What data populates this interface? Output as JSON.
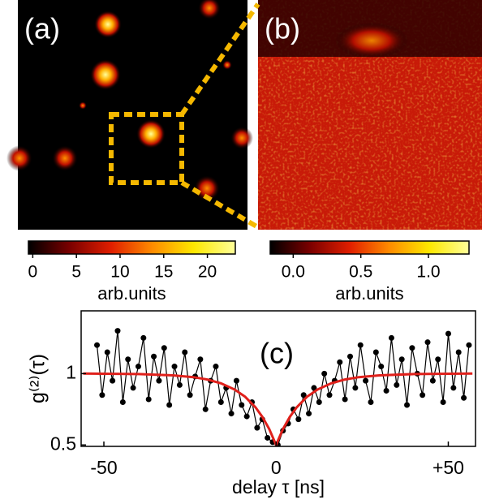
{
  "chart_data": [
    {
      "type": "heatmap",
      "label": "(a)",
      "colorbar": {
        "label": "arb.units",
        "clim": [
          -0.5,
          23.2
        ],
        "ticks": [
          0,
          5,
          10,
          15,
          20
        ],
        "colormap": [
          "#000000",
          "#7a0000",
          "#e01e00",
          "#ff8c00",
          "#ffe800",
          "#ffff9a"
        ]
      }
    },
    {
      "type": "heatmap",
      "label": "(b)",
      "colorbar": {
        "label": "arb.units",
        "clim": [
          -0.17,
          1.3
        ],
        "ticks": [
          {
            "value": 0,
            "label": "0.0"
          },
          {
            "value": 0.5,
            "label": "0.5"
          },
          {
            "value": 1,
            "label": "1.0"
          }
        ],
        "colormap": [
          "#000000",
          "#7a0000",
          "#e01e00",
          "#ff8c00",
          "#ffe800",
          "#ffff9a"
        ]
      }
    },
    {
      "type": "line",
      "label": "(c)",
      "xlabel": "delay τ [ns]",
      "ylabel": "g⁽²⁾(τ)",
      "xlim": [
        -56.6,
        57.9
      ],
      "ylim": [
        0.49,
        1.44
      ],
      "xticks": [
        {
          "value": -50,
          "label": "-50"
        },
        0,
        {
          "value": 50,
          "label": "+50"
        }
      ],
      "yticks": [
        0.5,
        1
      ],
      "series": [
        {
          "color": "#000000",
          "markers": true,
          "x": [
            -52,
            -50.5,
            -49,
            -47.5,
            -46,
            -44.5,
            -43,
            -41.5,
            -40,
            -38.5,
            -37,
            -35.5,
            -34,
            -32.5,
            -31,
            -29.5,
            -28,
            -26.5,
            -25,
            -23.5,
            -22,
            -20.5,
            -19,
            -17.5,
            -16,
            -14.5,
            -13,
            -11.5,
            -10,
            -8.5,
            -7,
            -5.5,
            -4,
            -2.5,
            -1,
            0.5,
            2,
            3.5,
            5,
            6.5,
            8,
            9.5,
            11,
            12.5,
            14,
            15.5,
            17,
            18.5,
            20,
            21.5,
            23,
            24.5,
            26,
            27.5,
            29,
            30.5,
            32,
            33.5,
            35,
            36.5,
            38,
            39.5,
            41,
            42.5,
            44,
            45.5,
            47,
            48.5,
            50,
            51.5,
            53,
            54.5,
            56
          ],
          "values": [
            1.2,
            0.85,
            1.15,
            0.95,
            1.3,
            0.8,
            1.1,
            0.9,
            1.05,
            1.25,
            0.82,
            1.12,
            0.95,
            1.18,
            0.78,
            1.05,
            0.92,
            1.15,
            0.85,
            0.98,
            1.1,
            0.75,
            0.95,
            1.05,
            0.8,
            0.9,
            0.72,
            0.95,
            0.78,
            0.7,
            0.8,
            0.62,
            0.68,
            0.55,
            0.52,
            0.5,
            0.6,
            0.65,
            0.75,
            0.68,
            0.85,
            0.72,
            0.9,
            0.8,
            1.0,
            0.85,
            0.95,
            1.08,
            0.82,
            1.12,
            0.9,
            1.2,
            0.95,
            0.8,
            1.15,
            1.05,
            0.88,
            1.25,
            0.92,
            1.1,
            0.78,
            1.18,
            1.0,
            0.85,
            1.22,
            0.95,
            1.1,
            0.8,
            1.28,
            0.9,
            1.15,
            0.83,
            1.2
          ]
        },
        {
          "color": "#e0201b",
          "markers": false,
          "x": [
            -56,
            -40,
            -30,
            -24,
            -20,
            -16,
            -12,
            -9,
            -6,
            -4,
            -2,
            0,
            2,
            4,
            6,
            9,
            12,
            16,
            20,
            24,
            30,
            40,
            57
          ],
          "values": [
            1.0,
            0.997,
            0.988,
            0.975,
            0.959,
            0.932,
            0.888,
            0.838,
            0.764,
            0.697,
            0.611,
            0.5,
            0.611,
            0.697,
            0.764,
            0.838,
            0.888,
            0.932,
            0.959,
            0.975,
            0.988,
            0.997,
            1.0
          ]
        }
      ]
    }
  ]
}
